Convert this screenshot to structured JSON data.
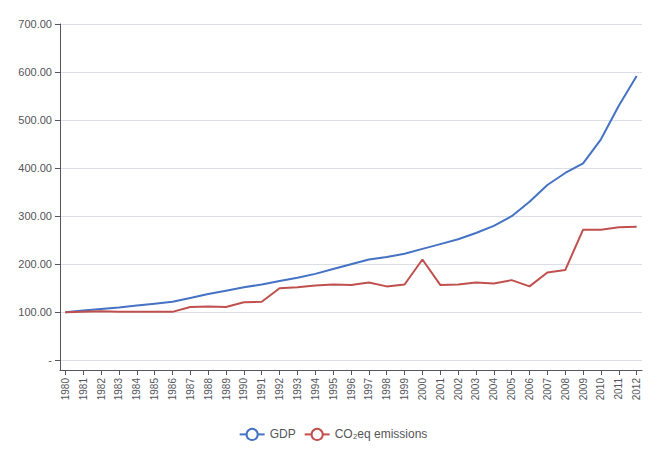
{
  "chart_data": {
    "type": "line",
    "x": [
      1980,
      1981,
      1982,
      1983,
      1984,
      1985,
      1986,
      1987,
      1988,
      1989,
      1990,
      1991,
      1992,
      1993,
      1994,
      1995,
      1996,
      1997,
      1998,
      1999,
      2000,
      2001,
      2002,
      2003,
      2004,
      2005,
      2006,
      2007,
      2008,
      2009,
      2010,
      2011,
      2012
    ],
    "series": [
      {
        "name": "GDP",
        "color": "#4472C4",
        "values": [
          100,
          104,
          107,
          110,
          114,
          118,
          122,
          130,
          138,
          145,
          152,
          158,
          165,
          172,
          180,
          190,
          200,
          210,
          215,
          222,
          232,
          242,
          252,
          265,
          280,
          300,
          330,
          365,
          390,
          410,
          460,
          530,
          592
        ]
      },
      {
        "name": "CO₂eq emissions",
        "color": "#C0504D",
        "values": [
          100,
          101,
          102,
          101,
          101,
          101,
          101,
          111,
          112,
          111,
          121,
          122,
          150,
          152,
          156,
          158,
          157,
          162,
          154,
          158,
          210,
          157,
          158,
          162,
          160,
          167,
          154,
          183,
          188,
          272,
          272,
          277,
          278
        ]
      }
    ],
    "xlim": [
      1979.7,
      2012.3
    ],
    "xticks": [
      1980,
      1981,
      1982,
      1983,
      1984,
      1985,
      1986,
      1987,
      1988,
      1989,
      1990,
      1991,
      1992,
      1993,
      1994,
      1995,
      1996,
      1997,
      1998,
      1999,
      2000,
      2001,
      2002,
      2003,
      2004,
      2005,
      2006,
      2007,
      2008,
      2009,
      2010,
      2011,
      2012
    ],
    "ylim": [
      -20,
      700
    ],
    "yticks": [
      {
        "value": 0,
        "label": "-"
      },
      {
        "value": 100,
        "label": "100.00"
      },
      {
        "value": 200,
        "label": "200.00"
      },
      {
        "value": 300,
        "label": "300.00"
      },
      {
        "value": 400,
        "label": "400.00"
      },
      {
        "value": 500,
        "label": "500.00"
      },
      {
        "value": 600,
        "label": "600.00"
      },
      {
        "value": 700,
        "label": "700.00"
      }
    ],
    "grid": true,
    "legend": "bottom"
  }
}
